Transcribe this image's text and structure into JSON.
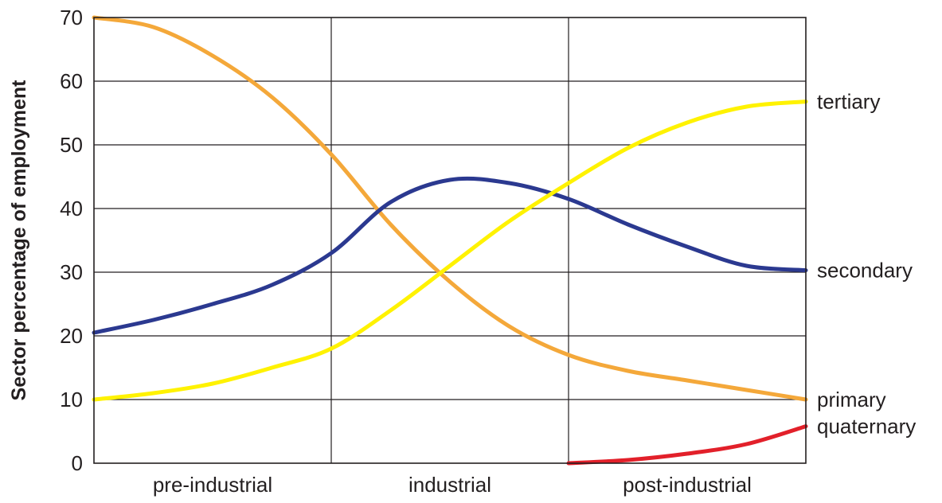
{
  "chart_data": {
    "type": "line",
    "ylabel": "Sector percentage of employment",
    "xlabel": "",
    "ylim": [
      0,
      70
    ],
    "yticks": [
      0,
      10,
      20,
      30,
      40,
      50,
      60,
      70
    ],
    "xlim": [
      0,
      3
    ],
    "categories": [
      "pre-industrial",
      "industrial",
      "post-industrial"
    ],
    "grid": true,
    "legend_placement": "right (labels at line ends)",
    "series": [
      {
        "name": "primary",
        "color": "#f4a83a",
        "x": [
          0,
          0.25,
          0.5,
          0.75,
          1.0,
          1.25,
          1.5,
          1.75,
          2.0,
          2.25,
          2.5,
          2.75,
          3.0
        ],
        "y": [
          70,
          68.5,
          64,
          57.5,
          48.5,
          37.5,
          28.5,
          21.5,
          17,
          14.5,
          13,
          11.5,
          10
        ]
      },
      {
        "name": "secondary",
        "color": "#2b3990",
        "x": [
          0,
          0.25,
          0.5,
          0.75,
          1.0,
          1.25,
          1.5,
          1.75,
          2.0,
          2.25,
          2.5,
          2.75,
          3.0
        ],
        "y": [
          20.5,
          22.5,
          25,
          28,
          33,
          41,
          44.5,
          44,
          41.5,
          37.5,
          34,
          31,
          30.3
        ]
      },
      {
        "name": "tertiary",
        "color": "#fff200",
        "x": [
          0,
          0.25,
          0.5,
          0.75,
          1.0,
          1.25,
          1.5,
          1.75,
          2.0,
          2.25,
          2.5,
          2.75,
          3.0
        ],
        "y": [
          10,
          11,
          12.5,
          15,
          18,
          24,
          31,
          38,
          44,
          49.5,
          53.5,
          56,
          56.8
        ]
      },
      {
        "name": "quaternary",
        "color": "#e2202a",
        "x": [
          2.0,
          2.25,
          2.5,
          2.75,
          3.0
        ],
        "y": [
          0,
          0.5,
          1.5,
          3,
          5.8
        ]
      }
    ]
  }
}
